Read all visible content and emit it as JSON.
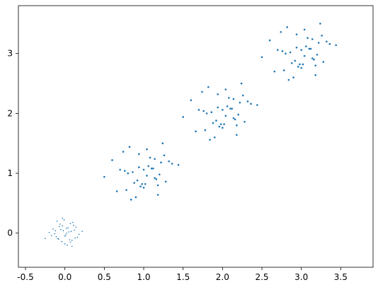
{
  "chart_data": {
    "type": "scatter",
    "xlim": [
      -0.59,
      3.91
    ],
    "ylim": [
      -0.57,
      3.8
    ],
    "xticks": [
      -0.5,
      {
        "value": 0,
        "label": "0.0"
      },
      0.5,
      {
        "value": 1,
        "label": "1.0"
      },
      1.5,
      {
        "value": 2,
        "label": "2.0"
      },
      2.5,
      {
        "value": 3,
        "label": "3.0"
      },
      3.5
    ],
    "yticks": [
      0,
      1,
      2,
      3
    ],
    "series": [
      {
        "color": "#1f77b4",
        "marker_size": 0.8,
        "x": [
          0.05,
          -0.08,
          0.12,
          -0.03,
          0.01,
          -0.15,
          0.09,
          0.02,
          -0.06,
          0.18,
          -0.11,
          0.04,
          0.07,
          -0.02,
          -0.2,
          0.14,
          -0.09,
          0.0,
          0.1,
          -0.05,
          0.03,
          -0.13,
          0.08,
          -0.01,
          0.16,
          -0.07,
          0.06,
          -0.17,
          0.11,
          -0.04,
          0.02,
          0.13,
          -0.1,
          0.0,
          0.22,
          -0.25,
          0.07,
          -0.03,
          0.09,
          -0.12
        ],
        "values": [
          0.02,
          -0.1,
          0.05,
          0.12,
          -0.03,
          0.07,
          -0.12,
          0.0,
          0.15,
          -0.02,
          -0.06,
          0.09,
          -0.15,
          0.04,
          0.01,
          0.1,
          -0.09,
          -0.05,
          0.18,
          0.06,
          -0.2,
          -0.01,
          0.03,
          0.22,
          -0.07,
          0.11,
          -0.11,
          -0.04,
          0.13,
          -0.14,
          0.08,
          -0.08,
          0.2,
          -0.18,
          0.03,
          -0.09,
          0.16,
          0.25,
          -0.22,
          0.04
        ]
      },
      {
        "color": "#1f77b4",
        "marker_size": 1.3,
        "x": [
          1.1,
          0.84,
          1.24,
          0.94,
          1.02,
          0.7,
          1.18,
          1.04,
          0.88,
          1.36,
          0.78,
          1.08,
          1.14,
          0.96,
          0.6,
          1.28,
          0.82,
          1.0,
          1.2,
          0.9,
          1.06,
          0.74,
          1.16,
          0.98,
          1.32,
          0.86,
          1.12,
          0.66,
          1.22,
          0.92,
          1.04,
          1.26,
          0.8,
          1.0,
          1.44,
          0.5,
          1.14,
          0.94,
          1.18,
          0.76
        ],
        "values": [
          1.08,
          0.56,
          1.5,
          1.32,
          0.82,
          1.06,
          0.64,
          1.4,
          0.84,
          1.16,
          0.72,
          1.26,
          0.92,
          0.78,
          1.22,
          0.86,
          1.44,
          1.06,
          0.98,
          0.6,
          1.12,
          1.36,
          0.9,
          0.82,
          1.2,
          1.02,
          1.08,
          0.7,
          1.18,
          0.88,
          0.96,
          1.3,
          1.0,
          0.76,
          1.14,
          0.94,
          1.24,
          1.1,
          0.8,
          1.04
        ]
      },
      {
        "color": "#1f77b4",
        "marker_size": 1.3,
        "x": [
          1.76,
          2.18,
          1.94,
          2.14,
          1.5,
          2.44,
          2.0,
          1.8,
          2.26,
          2.04,
          1.92,
          2.22,
          1.66,
          2.12,
          1.86,
          2.32,
          1.98,
          2.16,
          1.74,
          2.06,
          1.9,
          2.2,
          2.0,
          1.82,
          2.28,
          1.6,
          1.96,
          2.14,
          2.08,
          1.78,
          2.36,
          1.88,
          2.04,
          2.18,
          1.7,
          2.02,
          1.94,
          2.24,
          1.84,
          2.1
        ],
        "values": [
          2.04,
          1.8,
          2.1,
          2.24,
          1.94,
          2.14,
          1.76,
          2.0,
          2.3,
          1.96,
          1.88,
          2.18,
          1.7,
          2.08,
          2.02,
          2.2,
          1.82,
          1.9,
          2.36,
          2.12,
          1.6,
          1.98,
          2.06,
          2.44,
          1.86,
          2.22,
          1.78,
          1.92,
          2.26,
          1.72,
          2.16,
          1.84,
          2.4,
          1.64,
          2.06,
          1.82,
          2.32,
          2.5,
          1.56,
          2.08
        ]
      },
      {
        "color": "#1f77b4",
        "marker_size": 1.3,
        "x": [
          3.1,
          2.84,
          3.24,
          2.94,
          3.02,
          2.7,
          3.18,
          3.04,
          2.88,
          3.36,
          2.78,
          3.08,
          3.14,
          2.96,
          2.6,
          3.28,
          2.82,
          3.0,
          3.2,
          2.9,
          3.06,
          2.74,
          3.16,
          2.98,
          3.32,
          2.86,
          3.12,
          2.66,
          3.22,
          2.92,
          3.04,
          3.26,
          2.8,
          3.0,
          3.44,
          2.5,
          3.14,
          2.94,
          3.18,
          2.76
        ],
        "values": [
          3.08,
          2.56,
          3.5,
          3.32,
          2.82,
          3.06,
          2.64,
          3.4,
          2.84,
          3.16,
          2.72,
          3.26,
          2.92,
          2.78,
          3.22,
          2.86,
          3.44,
          3.06,
          2.98,
          2.6,
          3.12,
          3.36,
          2.9,
          2.82,
          3.2,
          3.02,
          3.08,
          2.7,
          3.18,
          2.88,
          2.96,
          3.3,
          3.0,
          2.76,
          3.14,
          2.94,
          3.24,
          3.1,
          2.8,
          3.04
        ]
      }
    ]
  }
}
